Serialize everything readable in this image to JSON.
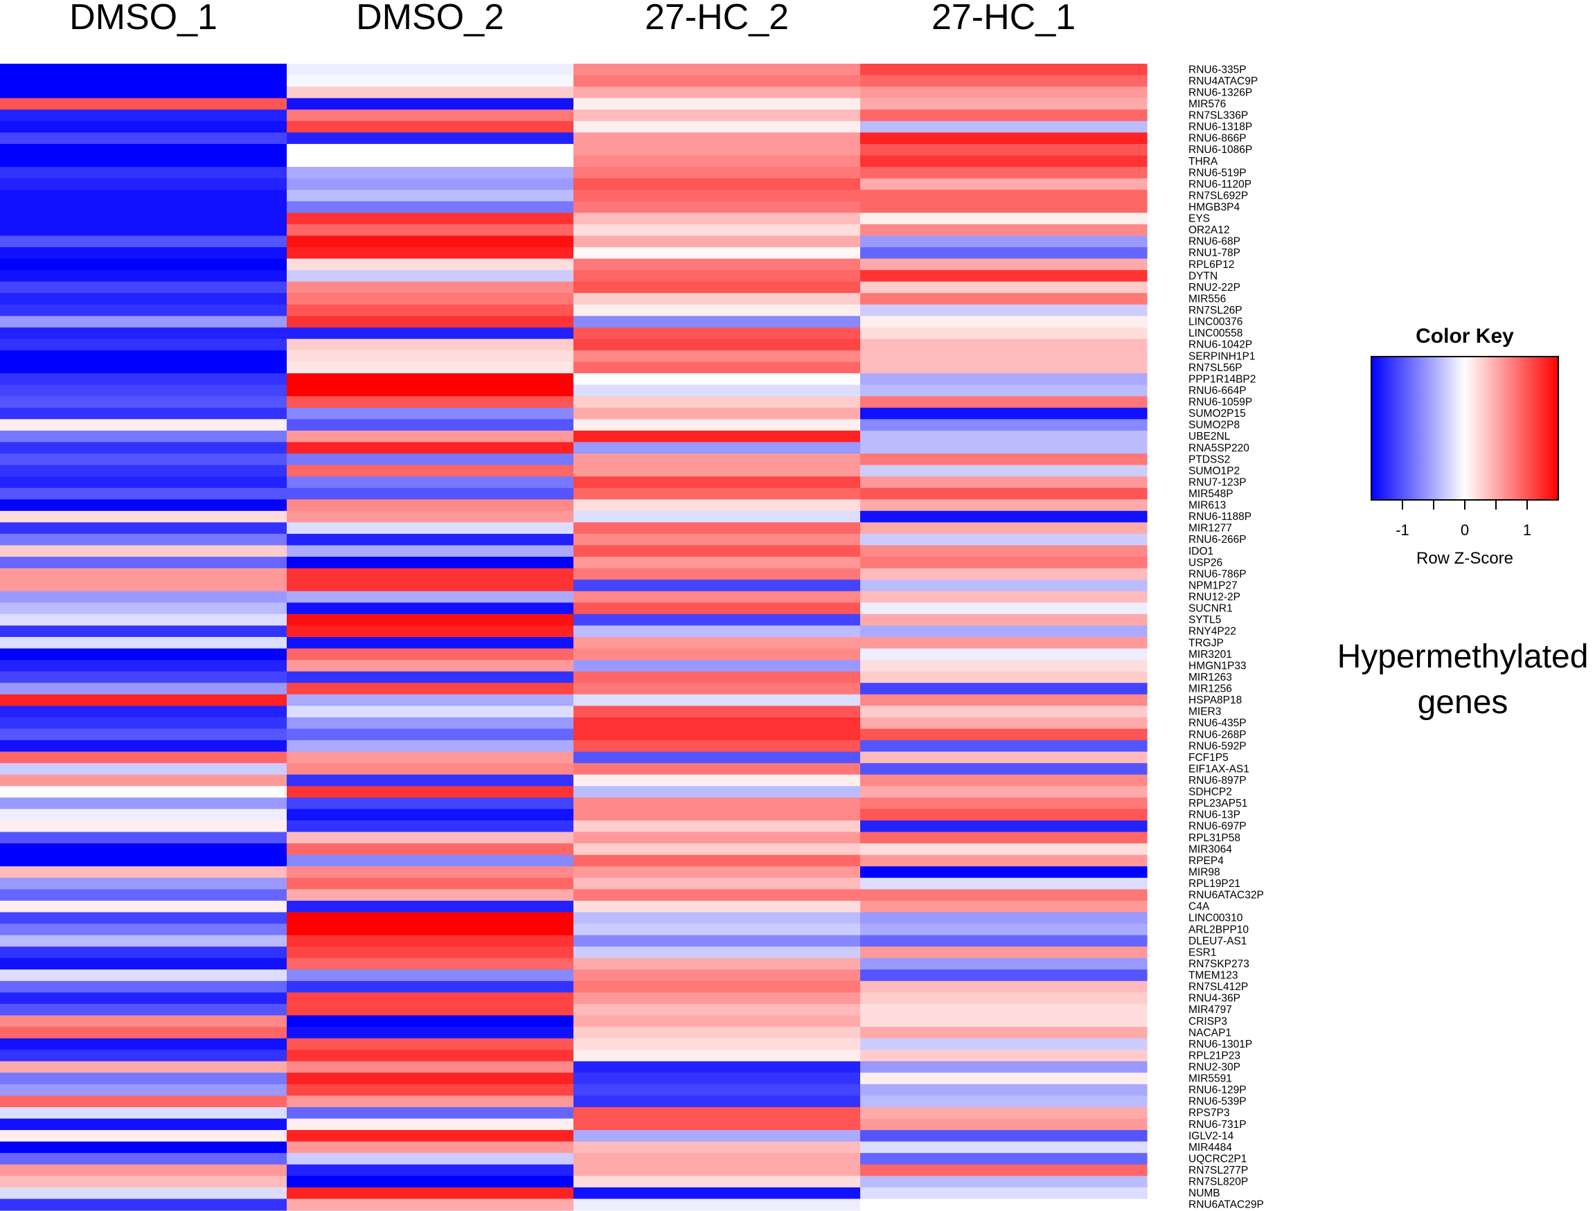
{
  "chart_data": {
    "type": "heatmap",
    "title": "",
    "annotation_lines": [
      "Hypermethylated",
      "genes"
    ],
    "columns": [
      "DMSO_1",
      "DMSO_2",
      "27-HC_2",
      "27-HC_1"
    ],
    "rows": [
      "RNU6-335P",
      "RNU4ATAC9P",
      "RNU6-1326P",
      "MIR576",
      "RN7SL336P",
      "RNU6-1318P",
      "RNU6-866P",
      "RNU6-1086P",
      "THRA",
      "RNU6-519P",
      "RNU6-1120P",
      "RN7SL692P",
      "HMGB3P4",
      "EYS",
      "OR2A12",
      "RNU6-68P",
      "RNU1-78P",
      "RPL6P12",
      "DYTN",
      "RNU2-22P",
      "MIR556",
      "RN7SL26P",
      "LINC00376",
      "LINC00558",
      "RNU6-1042P",
      "SERPINH1P1",
      "RN7SL56P",
      "PPP1R14BP2",
      "RNU6-664P",
      "RNU6-1059P",
      "SUMO2P15",
      "SUMO2P8",
      "UBE2NL",
      "RNA5SP220",
      "PTDSS2",
      "SUMO1P2",
      "RNU7-123P",
      "MIR548P",
      "MIR613",
      "RNU6-1188P",
      "MIR1277",
      "RNU6-266P",
      "IDO1",
      "USP26",
      "RNU6-786P",
      "NPM1P27",
      "RNU12-2P",
      "SUCNR1",
      "SYTL5",
      "RNY4P22",
      "TRGJP",
      "MIR3201",
      "HMGN1P33",
      "MIR1263",
      "MIR1256",
      "HSPA8P18",
      "MIER3",
      "RNU6-435P",
      "RNU6-268P",
      "RNU6-592P",
      "FCF1P5",
      "EIF1AX-AS1",
      "RNU6-897P",
      "SDHCP2",
      "RPL23AP51",
      "RNU6-13P",
      "RNU6-697P",
      "RPL31P58",
      "MIR3064",
      "RPEP4",
      "MIR98",
      "RPL19P21",
      "RNU6ATAC32P",
      "C4A",
      "LINC00310",
      "ARL2BPP10",
      "DLEU7-AS1",
      "ESR1",
      "RN7SKP273",
      "TMEM123",
      "RN7SL412P",
      "RNU4-36P",
      "MIR4797",
      "CRISP3",
      "NACAP1",
      "RNU6-1301P",
      "RPL21P23",
      "RNU2-30P",
      "MIR5591",
      "RNU6-129P",
      "RNU6-539P",
      "RPS7P3",
      "RNU6-731P",
      "IGLV2-14",
      "MIR4484",
      "UQCRC2P1",
      "RN7SL277P",
      "RN7SL820P",
      "NUMB",
      "RNU6ATAC29P"
    ],
    "values": [
      [
        -1.5,
        -0.1,
        0.7,
        1.1
      ],
      [
        -1.5,
        -0.05,
        0.8,
        0.9
      ],
      [
        -1.5,
        0.3,
        0.5,
        0.6
      ],
      [
        1.0,
        -1.4,
        0.1,
        0.5
      ],
      [
        -1.3,
        0.8,
        0.4,
        0.9
      ],
      [
        -1.4,
        1.1,
        0.1,
        -0.4
      ],
      [
        -1.1,
        -1.3,
        0.6,
        1.3
      ],
      [
        -1.5,
        0.0,
        0.6,
        1.0
      ],
      [
        -1.5,
        0.0,
        0.7,
        1.2
      ],
      [
        -1.2,
        -0.5,
        0.8,
        0.9
      ],
      [
        -1.3,
        -0.6,
        1.0,
        0.5
      ],
      [
        -1.4,
        -0.4,
        0.9,
        0.9
      ],
      [
        -1.4,
        -0.8,
        0.8,
        0.9
      ],
      [
        -1.4,
        1.2,
        0.4,
        0.1
      ],
      [
        -1.4,
        0.9,
        0.2,
        0.7
      ],
      [
        -1.0,
        1.4,
        0.5,
        -0.6
      ],
      [
        -1.4,
        1.3,
        0.05,
        -0.9
      ],
      [
        -1.5,
        0.2,
        0.8,
        0.5
      ],
      [
        -1.4,
        -0.3,
        0.9,
        1.2
      ],
      [
        -1.1,
        0.7,
        1.0,
        0.3
      ],
      [
        -1.3,
        0.8,
        0.3,
        0.8
      ],
      [
        -1.2,
        1.0,
        0.1,
        -0.3
      ],
      [
        -0.6,
        1.2,
        -0.7,
        0.1
      ],
      [
        -1.3,
        -1.3,
        1.0,
        0.2
      ],
      [
        -1.2,
        0.3,
        1.1,
        0.4
      ],
      [
        -1.5,
        0.2,
        0.7,
        0.4
      ],
      [
        -1.5,
        0.15,
        0.9,
        0.4
      ],
      [
        -1.2,
        1.5,
        0.0,
        -0.5
      ],
      [
        -1.1,
        1.5,
        -0.2,
        -0.4
      ],
      [
        -1.0,
        1.0,
        0.3,
        0.8
      ],
      [
        -1.2,
        -0.7,
        0.5,
        -1.4
      ],
      [
        0.1,
        -1.0,
        0.1,
        -0.7
      ],
      [
        -0.8,
        0.6,
        1.3,
        -0.4
      ],
      [
        -1.2,
        1.3,
        -0.6,
        -0.4
      ],
      [
        -1.0,
        -0.8,
        0.6,
        0.8
      ],
      [
        -1.2,
        0.9,
        0.6,
        -0.3
      ],
      [
        -1.3,
        -0.8,
        1.1,
        0.6
      ],
      [
        -1.0,
        -1.0,
        0.9,
        1.0
      ],
      [
        -1.5,
        0.7,
        0.2,
        0.5
      ],
      [
        0.2,
        0.6,
        -0.2,
        -1.4
      ],
      [
        -1.2,
        -0.2,
        0.9,
        0.5
      ],
      [
        -0.8,
        -1.3,
        0.7,
        -0.3
      ],
      [
        0.3,
        -0.5,
        1.0,
        0.7
      ],
      [
        -0.9,
        -1.5,
        0.6,
        0.8
      ],
      [
        0.6,
        1.2,
        0.8,
        0.4
      ],
      [
        0.6,
        1.2,
        -1.1,
        -0.4
      ],
      [
        -0.6,
        -0.5,
        0.7,
        0.4
      ],
      [
        -0.4,
        -1.4,
        1.0,
        -0.1
      ],
      [
        -0.2,
        1.4,
        -1.1,
        0.5
      ],
      [
        -1.2,
        1.3,
        -0.4,
        -0.5
      ],
      [
        -0.2,
        -1.4,
        0.6,
        0.6
      ],
      [
        -1.5,
        0.9,
        0.7,
        -0.1
      ],
      [
        -1.3,
        0.6,
        -0.6,
        0.2
      ],
      [
        -1.1,
        -1.2,
        0.9,
        0.3
      ],
      [
        -0.6,
        1.1,
        0.8,
        -1.1
      ],
      [
        1.3,
        -0.5,
        -0.2,
        0.7
      ],
      [
        -1.3,
        -0.2,
        1.0,
        0.3
      ],
      [
        -1.2,
        -0.6,
        1.2,
        0.5
      ],
      [
        -1.0,
        -0.9,
        1.2,
        1.0
      ],
      [
        -1.4,
        -0.5,
        1.0,
        -1.0
      ],
      [
        0.9,
        0.6,
        -1.0,
        0.4
      ],
      [
        -0.3,
        0.7,
        0.8,
        -1.0
      ],
      [
        0.6,
        -1.2,
        0.1,
        0.7
      ],
      [
        0.0,
        1.2,
        -0.4,
        0.5
      ],
      [
        -0.6,
        -1.1,
        0.7,
        0.8
      ],
      [
        -0.1,
        -1.4,
        0.7,
        1.0
      ],
      [
        0.1,
        -1.2,
        0.3,
        -1.3
      ],
      [
        -1.0,
        0.4,
        0.6,
        0.9
      ],
      [
        -1.5,
        0.9,
        0.3,
        0.2
      ],
      [
        -1.5,
        -0.7,
        0.9,
        0.6
      ],
      [
        0.4,
        0.7,
        0.6,
        -1.5
      ],
      [
        -0.6,
        0.9,
        0.4,
        -0.2
      ],
      [
        -0.9,
        0.5,
        0.8,
        0.8
      ],
      [
        0.1,
        -1.3,
        0.2,
        0.6
      ],
      [
        -1.1,
        1.5,
        -0.4,
        -0.6
      ],
      [
        -0.8,
        1.5,
        -0.3,
        -0.5
      ],
      [
        -0.4,
        1.2,
        -0.7,
        -0.9
      ],
      [
        -1.2,
        1.1,
        -0.3,
        0.6
      ],
      [
        -1.4,
        0.9,
        0.5,
        -0.6
      ],
      [
        -0.2,
        -0.7,
        0.7,
        -1.0
      ],
      [
        -0.9,
        -1.2,
        0.8,
        0.4
      ],
      [
        -1.3,
        1.1,
        0.6,
        0.3
      ],
      [
        -1.0,
        1.1,
        0.4,
        0.2
      ],
      [
        0.7,
        -1.5,
        0.5,
        0.2
      ],
      [
        0.9,
        -1.4,
        0.3,
        0.5
      ],
      [
        -1.4,
        1.0,
        0.2,
        -0.3
      ],
      [
        -1.2,
        1.2,
        0.1,
        0.3
      ],
      [
        0.5,
        0.7,
        -1.3,
        -0.6
      ],
      [
        -0.8,
        1.3,
        -1.2,
        0.1
      ],
      [
        -0.6,
        1.1,
        -1.1,
        -0.5
      ],
      [
        0.9,
        0.6,
        -1.2,
        -0.4
      ],
      [
        -0.2,
        -0.9,
        1.0,
        0.5
      ],
      [
        -1.4,
        0.1,
        1.0,
        0.6
      ],
      [
        0.1,
        1.3,
        -0.5,
        -1.0
      ],
      [
        -1.5,
        0.6,
        0.4,
        -0.2
      ],
      [
        -0.9,
        -0.3,
        0.5,
        -0.9
      ],
      [
        0.6,
        -1.3,
        0.5,
        0.9
      ],
      [
        0.4,
        -1.5,
        0.2,
        -0.4
      ],
      [
        -0.2,
        1.3,
        -1.4,
        -0.2
      ],
      [
        -1.2,
        0.5,
        -0.1,
        0.0
      ]
    ],
    "color_key": {
      "title": "Color Key",
      "xlabel": "Row Z-Score",
      "ticks": [
        "-1",
        "0",
        "1"
      ],
      "range": [
        -1.5,
        1.5
      ],
      "low_color": "#0000ff",
      "mid_color": "#ffffff",
      "high_color": "#ff0000"
    }
  }
}
